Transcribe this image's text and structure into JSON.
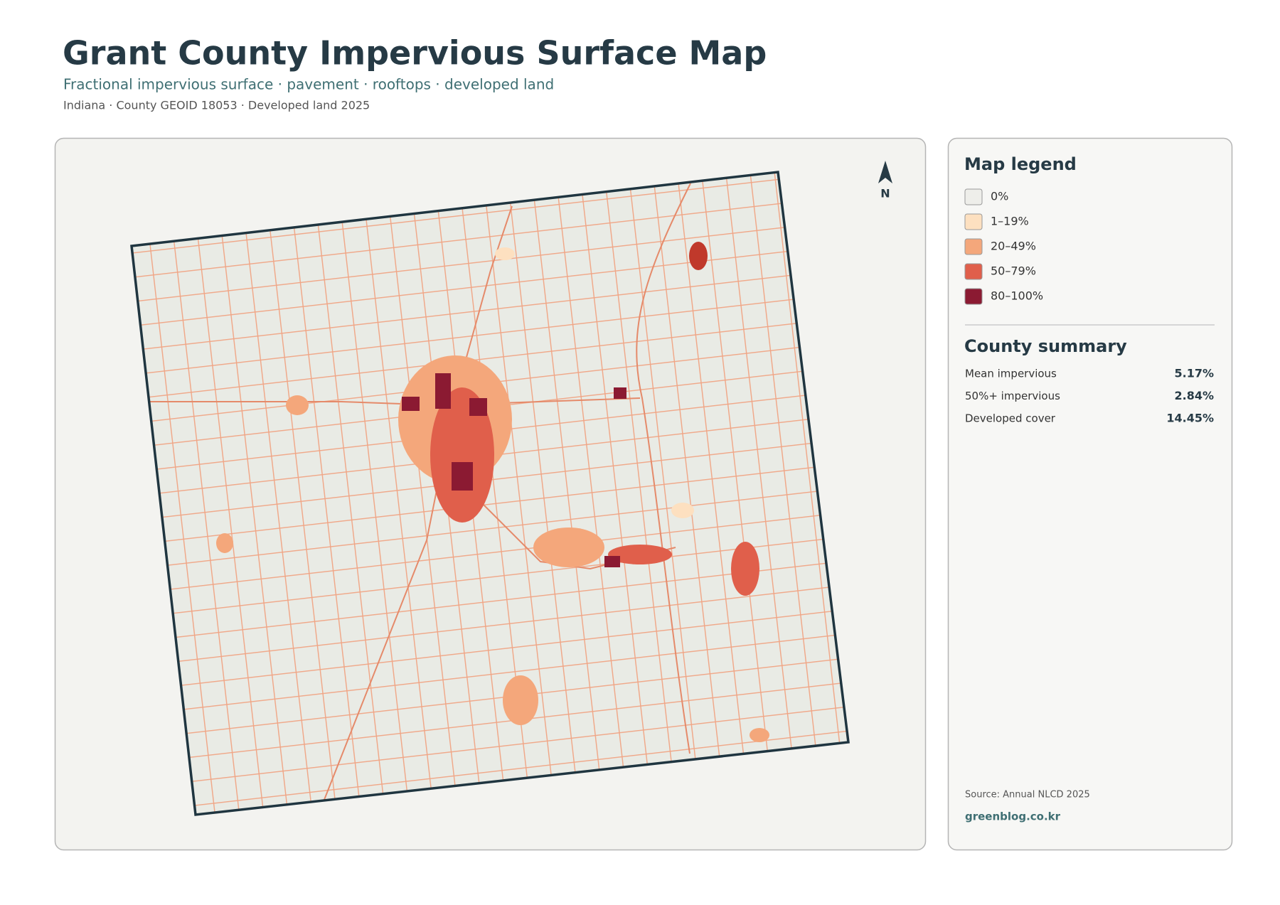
{
  "header": {
    "title": "Grant County Impervious Surface Map",
    "subtitle": "Fractional impervious surface · pavement · rooftops · developed land",
    "meta": "Indiana · County GEOID 18053 · Developed land 2025"
  },
  "map": {
    "north_label": "N"
  },
  "legend": {
    "title": "Map legend",
    "items": [
      {
        "label": "0%",
        "color": "#eeeeea"
      },
      {
        "label": "1–19%",
        "color": "#fde0c0"
      },
      {
        "label": "20–49%",
        "color": "#f4a77b"
      },
      {
        "label": "50–79%",
        "color": "#e05f4b"
      },
      {
        "label": "80–100%",
        "color": "#8b1a32"
      }
    ]
  },
  "summary": {
    "title": "County summary",
    "rows": [
      {
        "label": "Mean impervious",
        "value": "5.17%"
      },
      {
        "label": "50%+ impervious",
        "value": "2.84%"
      },
      {
        "label": "Developed cover",
        "value": "14.45%"
      }
    ]
  },
  "footer": {
    "source": "Source: Annual NLCD 2025",
    "site": "greenblog.co.kr"
  }
}
